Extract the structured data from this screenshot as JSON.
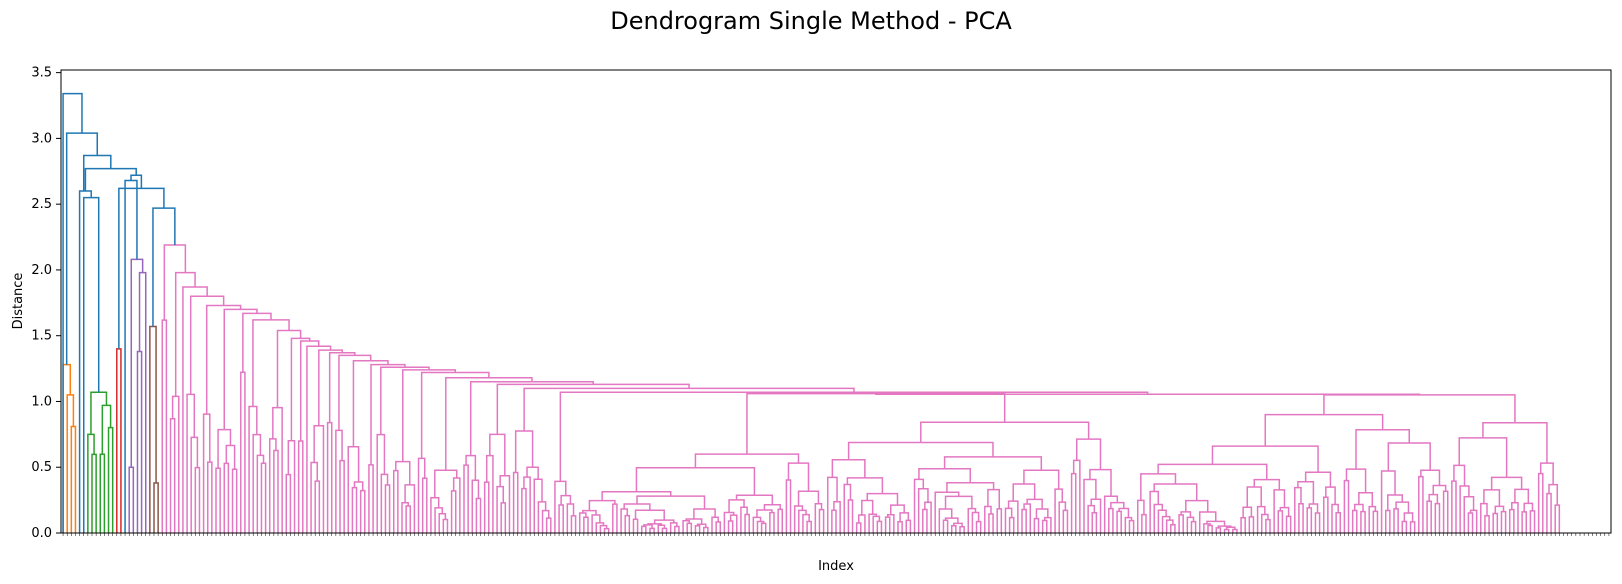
{
  "chart_data": {
    "type": "dendrogram",
    "title": "Dendrogram Single Method - PCA",
    "xlabel": "Index",
    "ylabel": "Distance",
    "ylim": [
      0,
      3.52
    ],
    "yticks": [
      0.0,
      0.5,
      1.0,
      1.5,
      2.0,
      2.5,
      3.0,
      3.5
    ],
    "ytick_labels": [
      "0.0",
      "0.5",
      "1.0",
      "1.5",
      "2.0",
      "2.5",
      "3.0",
      "3.5"
    ],
    "leaf_count": 375,
    "grid": false,
    "link_colors": {
      "above_threshold": "#1f77b4",
      "cluster_orange": "#ff7f0e",
      "cluster_green": "#2ca02c",
      "cluster_red": "#d62728",
      "cluster_purple": "#9467bd",
      "cluster_brown": "#8c564b",
      "cluster_pink": "#e377c2"
    },
    "top_merge_heights": [
      3.34,
      3.04,
      2.87,
      2.77,
      2.72,
      2.68,
      2.62,
      2.6,
      2.55,
      2.47
    ],
    "cluster_max_heights": {
      "orange": 1.28,
      "green": 1.07,
      "red": 1.4,
      "purple": 2.08,
      "brown": 1.57,
      "pink": 2.19
    },
    "pink_chain_heights": [
      2.19,
      1.98,
      1.87,
      1.8,
      1.73,
      1.7,
      1.67,
      1.62,
      1.54,
      1.48,
      1.46,
      1.42,
      1.39,
      1.37,
      1.35,
      1.31,
      1.28,
      1.26,
      1.24,
      1.22,
      1.18,
      1.15,
      1.13,
      1.1,
      1.07,
      1.06
    ]
  }
}
